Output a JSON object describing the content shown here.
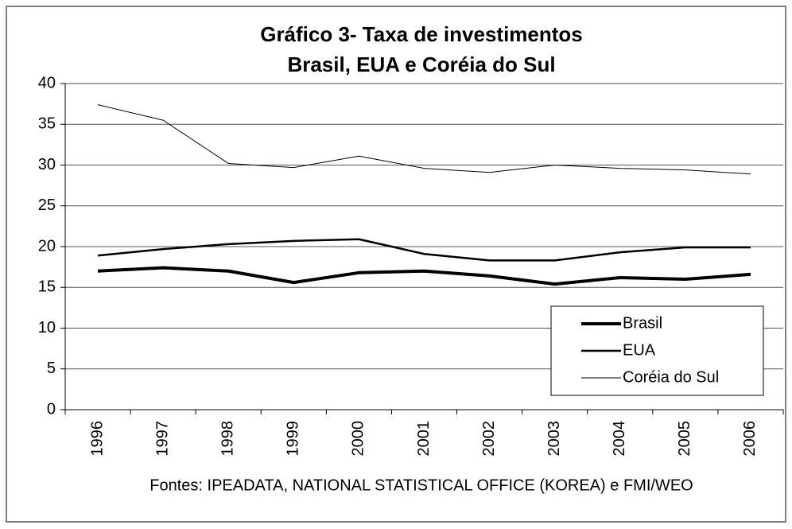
{
  "chart_data": {
    "type": "line",
    "title": "Gráfico 3- Taxa de investimentos",
    "subtitle": "Brasil, EUA e Coréia do Sul",
    "source": "Fontes: IPEADATA, NATIONAL STATISTICAL OFFICE (KOREA) e FMI/WEO",
    "categories": [
      "1996",
      "1997",
      "1998",
      "1999",
      "2000",
      "2001",
      "2002",
      "2003",
      "2004",
      "2005",
      "2006"
    ],
    "series": [
      {
        "name": "Brasil",
        "color": "#000000",
        "width": 4,
        "values": [
          17.0,
          17.4,
          17.0,
          15.6,
          16.8,
          17.0,
          16.4,
          15.4,
          16.2,
          16.0,
          16.6
        ]
      },
      {
        "name": "EUA",
        "color": "#000000",
        "width": 2.5,
        "values": [
          18.9,
          19.7,
          20.3,
          20.7,
          20.9,
          19.1,
          18.3,
          18.3,
          19.3,
          19.9,
          19.9
        ]
      },
      {
        "name": "Coréia do Sul",
        "color": "#000000",
        "width": 1,
        "values": [
          37.4,
          35.5,
          30.2,
          29.7,
          31.1,
          29.6,
          29.1,
          30.0,
          29.6,
          29.4,
          28.9
        ]
      }
    ],
    "ylim": [
      0,
      40
    ],
    "yticks": [
      0,
      5,
      10,
      15,
      20,
      25,
      30,
      35,
      40
    ],
    "grid": true,
    "legend": "lower-right"
  }
}
